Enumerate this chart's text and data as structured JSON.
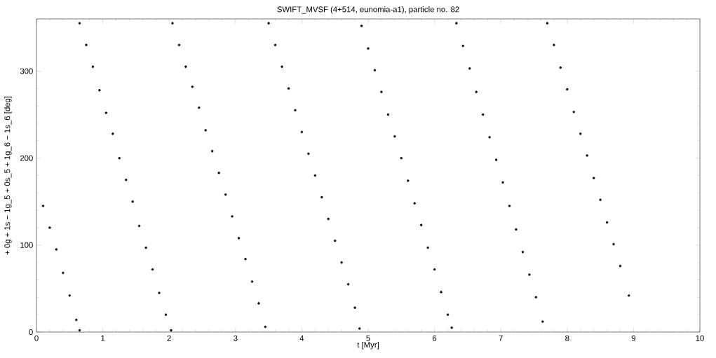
{
  "chart_data": {
    "type": "scatter",
    "title": "SWIFT_MVSF (4+514, eunomia-a1), particle no. 82",
    "xlabel": "t [Myr]",
    "ylabel": "+ 0g + 1s − 1g_5 + 0s_5 + 1g_6 − 1s_6 [deg]",
    "xlim": [
      0,
      10
    ],
    "ylim": [
      0,
      360
    ],
    "xticks": [
      0,
      1,
      2,
      3,
      4,
      5,
      6,
      7,
      8,
      9,
      10
    ],
    "yticks": [
      0,
      100,
      200,
      300
    ],
    "grid": false,
    "series": [
      {
        "color": "#000000",
        "x": [
          0.1,
          0.2,
          0.3,
          0.4,
          0.5,
          0.6,
          0.65,
          0.65,
          0.75,
          0.85,
          0.95,
          1.05,
          1.15,
          1.25,
          1.35,
          1.45,
          1.55,
          1.65,
          1.75,
          1.85,
          1.95,
          2.03,
          2.05,
          2.15,
          2.25,
          2.35,
          2.45,
          2.55,
          2.65,
          2.75,
          2.85,
          2.95,
          3.05,
          3.15,
          3.25,
          3.35,
          3.45,
          3.5,
          3.6,
          3.7,
          3.8,
          3.9,
          4.0,
          4.1,
          4.2,
          4.3,
          4.4,
          4.5,
          4.6,
          4.7,
          4.8,
          4.87,
          4.9,
          5.0,
          5.1,
          5.2,
          5.3,
          5.4,
          5.5,
          5.6,
          5.7,
          5.8,
          5.9,
          6.0,
          6.1,
          6.2,
          6.26,
          6.33,
          6.43,
          6.53,
          6.63,
          6.73,
          6.83,
          6.93,
          7.03,
          7.13,
          7.23,
          7.33,
          7.43,
          7.53,
          7.63,
          7.7,
          7.8,
          7.9,
          8.0,
          8.1,
          8.2,
          8.3,
          8.4,
          8.5,
          8.6,
          8.7,
          8.8,
          8.93
        ],
        "values": [
          145,
          120,
          95,
          68,
          42,
          14,
          2,
          355,
          330,
          305,
          278,
          252,
          228,
          200,
          175,
          150,
          122,
          97,
          72,
          45,
          20,
          2,
          355,
          330,
          305,
          282,
          258,
          232,
          208,
          183,
          158,
          133,
          108,
          84,
          58,
          33,
          6,
          355,
          330,
          305,
          280,
          255,
          230,
          205,
          180,
          155,
          130,
          105,
          80,
          55,
          28,
          4,
          352,
          326,
          301,
          276,
          250,
          225,
          200,
          174,
          148,
          123,
          97,
          72,
          46,
          20,
          5,
          355,
          329,
          303,
          276,
          250,
          224,
          198,
          172,
          145,
          118,
          92,
          66,
          40,
          12,
          355,
          330,
          304,
          279,
          253,
          228,
          203,
          177,
          152,
          126,
          101,
          76,
          42
        ]
      }
    ]
  }
}
